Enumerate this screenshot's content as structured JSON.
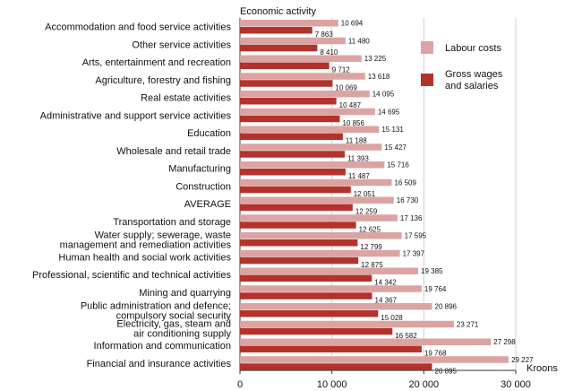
{
  "chart_data": {
    "type": "bar",
    "orientation": "horizontal",
    "title": "Economic activity",
    "xlabel": "Kroons",
    "xlim": [
      0,
      30000
    ],
    "xticks": [
      0,
      10000,
      20000,
      30000
    ],
    "xtick_labels": [
      "0",
      "10 000",
      "20 000",
      "30 000"
    ],
    "grid": "vertical",
    "legend_position": "top-right",
    "categories": [
      [
        "Accommodation and food service activities"
      ],
      [
        "Other service activities"
      ],
      [
        "Arts, entertainment and recreation"
      ],
      [
        "Agriculture, forestry and fishing"
      ],
      [
        "Real estate activities"
      ],
      [
        "Administrative and support service activities"
      ],
      [
        "Education"
      ],
      [
        "Wholesale and retail trade"
      ],
      [
        "Manufacturing"
      ],
      [
        "Construction"
      ],
      [
        "AVERAGE"
      ],
      [
        "Transportation and storage"
      ],
      [
        "Water supply; sewerage, waste",
        "management and remediation activities"
      ],
      [
        "Human health and social work activities"
      ],
      [
        "Professional, scientific and technical activities"
      ],
      [
        "Mining and quarrying"
      ],
      [
        "Public administration and defence;",
        "compulsory social security"
      ],
      [
        "Electricity, gas, steam and",
        "air conditioning supply"
      ],
      [
        "Information and communication"
      ],
      [
        "Financial and insurance activities"
      ]
    ],
    "series": [
      {
        "name": "Labour costs",
        "color": "#dba4a2",
        "values": [
          10694,
          11480,
          13225,
          13618,
          14095,
          14695,
          15131,
          15427,
          15716,
          16509,
          16730,
          17136,
          17595,
          17397,
          19385,
          19764,
          20896,
          23271,
          27298,
          29227
        ],
        "labels": [
          "10 694",
          "11 480",
          "13 225",
          "13 618",
          "14 095",
          "14 695",
          "15 131",
          "15 427",
          "15 716",
          "16 509",
          "16 730",
          "17 136",
          "17 595",
          "17 397",
          "19 385",
          "19 764",
          "20 896",
          "23 271",
          "27 298",
          "29 227"
        ]
      },
      {
        "name": "Gross wages and salaries",
        "legend_lines": [
          "Gross wages",
          "and salaries"
        ],
        "color": "#b3332c",
        "values": [
          7863,
          8410,
          9712,
          10069,
          10487,
          10856,
          11188,
          11393,
          11487,
          12051,
          12259,
          12625,
          12799,
          12875,
          14342,
          14367,
          15028,
          16582,
          19768,
          20895
        ],
        "labels": [
          "7 863",
          "8 410",
          "9 712",
          "10 069",
          "10 487",
          "10 856",
          "11 188",
          "11 393",
          "11 487",
          "12 051",
          "12 259",
          "12 625",
          "12 799",
          "12 875",
          "14 342",
          "14 367",
          "15 028",
          "16 582",
          "19 768",
          "20 895"
        ]
      }
    ]
  }
}
